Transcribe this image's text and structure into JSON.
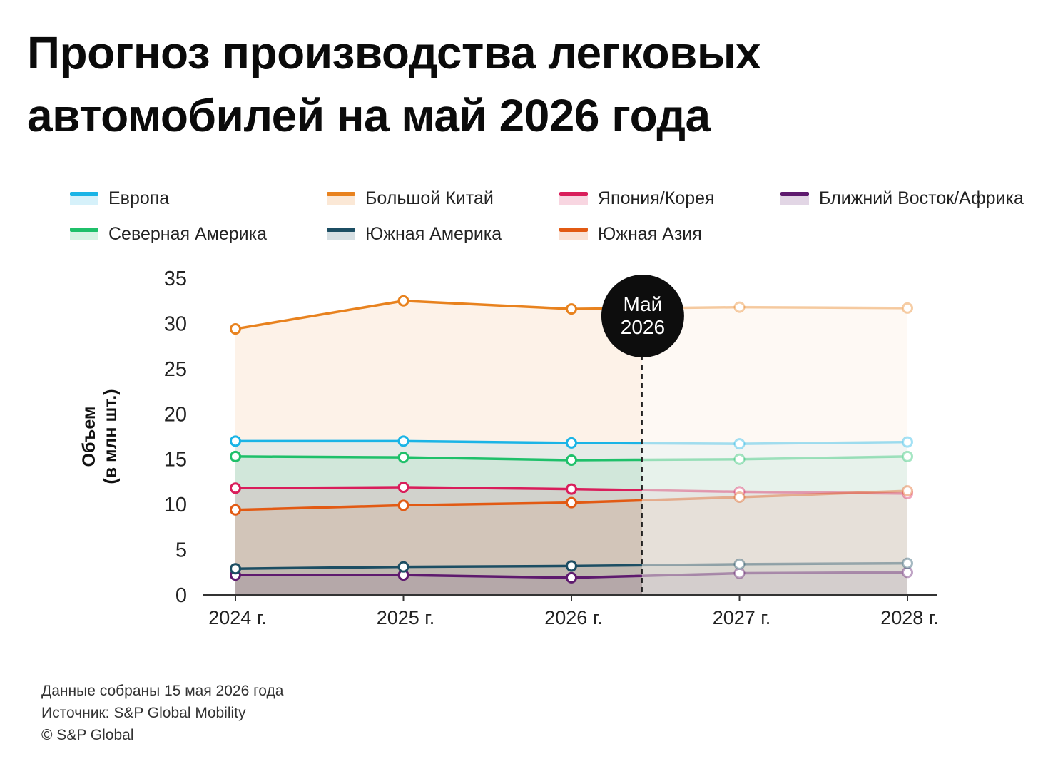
{
  "title_lines": [
    "Прогноз производства легковых",
    "автомобилей на май 2026 года"
  ],
  "ylabel_lines": [
    "Объем",
    "(в млн шт.)"
  ],
  "marker_label_lines": [
    "Май",
    "2026"
  ],
  "footer_lines": [
    "Данные собраны 15 мая 2026 года",
    "Источник: S&P Global Mobility",
    "© S&P Global"
  ],
  "chart_data": {
    "type": "line",
    "title": "Прогноз производства легковых автомобилей на май 2026 года",
    "xlabel": "",
    "ylabel": "Объем (в млн шт.)",
    "categories": [
      "2024 г.",
      "2025 г.",
      "2026 г.",
      "2027 г.",
      "2028 г."
    ],
    "x": [
      2024,
      2025,
      2026,
      2027,
      2028
    ],
    "ylim": [
      0,
      35
    ],
    "yticks": [
      0,
      5,
      10,
      15,
      20,
      25,
      30,
      35
    ],
    "forecast_start": 2026.42,
    "forecast_marker_label": "Май 2026",
    "grid": false,
    "legend_position": "top",
    "series": [
      {
        "name": "Европа",
        "color": "#1ab4e6",
        "values": [
          17.0,
          17.0,
          16.8,
          16.7,
          16.9
        ]
      },
      {
        "name": "Большой Китай",
        "color": "#e8821e",
        "values": [
          29.4,
          32.5,
          31.6,
          31.8,
          31.7
        ]
      },
      {
        "name": "Япония/Корея",
        "color": "#d91e5b",
        "values": [
          11.8,
          11.9,
          11.7,
          11.4,
          11.2
        ]
      },
      {
        "name": "Ближний Восток/Африка",
        "color": "#5e1a6e",
        "values": [
          2.2,
          2.2,
          1.9,
          2.4,
          2.5
        ]
      },
      {
        "name": "Северная Америка",
        "color": "#1fc06a",
        "values": [
          15.3,
          15.2,
          14.9,
          15.0,
          15.3
        ]
      },
      {
        "name": "Южная Америка",
        "color": "#1c4e63",
        "values": [
          2.9,
          3.1,
          3.2,
          3.4,
          3.5
        ]
      },
      {
        "name": "Южная Азия",
        "color": "#e25a13",
        "values": [
          9.4,
          9.9,
          10.2,
          10.8,
          11.5
        ]
      }
    ]
  }
}
